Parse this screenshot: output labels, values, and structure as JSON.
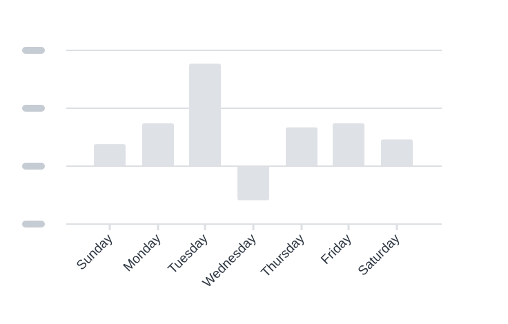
{
  "chart_data": {
    "type": "bar",
    "categories": [
      "Sunday",
      "Monday",
      "Tuesday",
      "Wednesday",
      "Thursday",
      "Friday",
      "Saturday"
    ],
    "values": [
      0.38,
      0.74,
      1.77,
      -0.59,
      0.67,
      0.74,
      0.46
    ],
    "ylim": [
      -1,
      2
    ],
    "grid": true,
    "y_tick_values": [
      -1,
      0,
      1,
      2
    ],
    "y_tick_labels_obscured": true,
    "colors": {
      "bar": "#dee1e5",
      "grid": "#dcdfe3",
      "tick_placeholder": "#c6ccd3",
      "label": "#2b3440"
    }
  }
}
